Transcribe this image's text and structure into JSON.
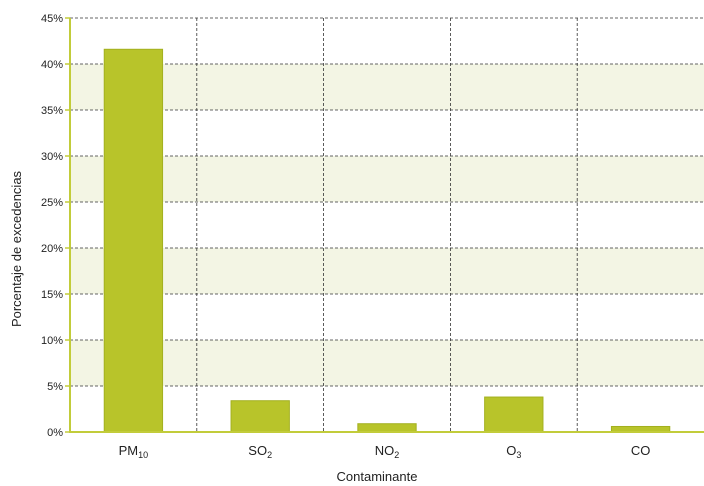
{
  "chart_data": {
    "type": "bar",
    "title": "",
    "xlabel": "Contaminante",
    "ylabel": "Porcentaje de excedencias",
    "categories": [
      {
        "base": "PM",
        "sub": "10"
      },
      {
        "base": "SO",
        "sub": "2"
      },
      {
        "base": "NO",
        "sub": "2"
      },
      {
        "base": "O",
        "sub": "3"
      },
      {
        "base": "CO",
        "sub": ""
      }
    ],
    "values": [
      41.6,
      3.4,
      0.9,
      3.8,
      0.6
    ],
    "ylim": [
      0,
      45
    ],
    "yticks": [
      0,
      5,
      10,
      15,
      20,
      25,
      30,
      35,
      40,
      45
    ],
    "ytick_labels": [
      "0%",
      "5%",
      "10%",
      "15%",
      "20%",
      "25%",
      "30%",
      "35%",
      "40%",
      "45%"
    ],
    "grid": true,
    "colors": {
      "bar_fill": "#b8c42a",
      "bar_edge": "#a3b01f",
      "band_light": "#f3f5e4",
      "band_white": "#ffffff",
      "axis": "#c2cc3a",
      "grid": "#333333"
    }
  }
}
